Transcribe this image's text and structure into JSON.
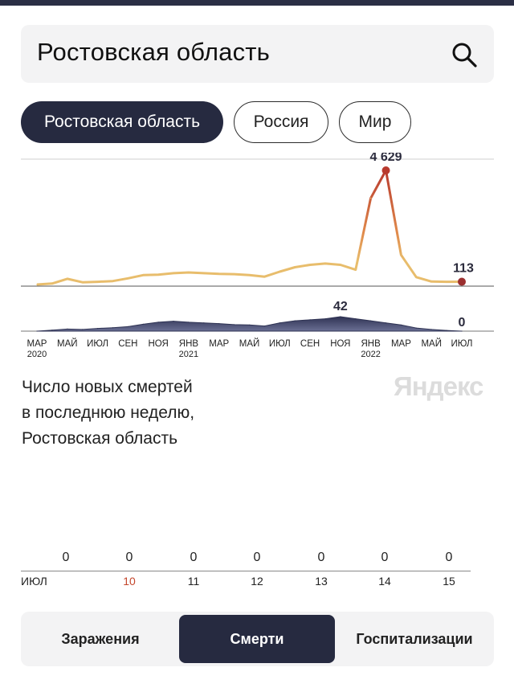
{
  "search": {
    "value": "Ростовская область",
    "icon": "search-icon"
  },
  "region_tabs": [
    {
      "label": "Ростовская область",
      "active": true
    },
    {
      "label": "Россия",
      "active": false
    },
    {
      "label": "Мир",
      "active": false
    }
  ],
  "chart_data": [
    {
      "type": "line",
      "title": "",
      "series": [
        {
          "x": [
            "2020-03",
            "2020-04",
            "2020-05",
            "2020-06",
            "2020-07",
            "2020-08",
            "2020-09",
            "2020-10",
            "2020-11",
            "2020-12",
            "2021-01",
            "2021-02",
            "2021-03",
            "2021-04",
            "2021-05",
            "2021-06",
            "2021-07",
            "2021-08",
            "2021-09",
            "2021-10",
            "2021-11",
            "2021-12",
            "2022-01",
            "2022-02",
            "2022-03",
            "2022-04",
            "2022-05",
            "2022-06",
            "2022-07"
          ],
          "y": [
            0,
            40,
            230,
            90,
            110,
            140,
            250,
            380,
            400,
            460,
            490,
            460,
            430,
            420,
            380,
            320,
            520,
            700,
            800,
            850,
            800,
            600,
            3500,
            4629,
            1200,
            300,
            120,
            110,
            113
          ]
        }
      ],
      "labels": {
        "peak": "4 629",
        "last": "113"
      },
      "colors": {
        "low": "#e8bd6c",
        "high": "#b83a2e"
      }
    },
    {
      "type": "area",
      "title": "",
      "series": [
        {
          "x": [
            "2020-03",
            "2020-04",
            "2020-05",
            "2020-06",
            "2020-07",
            "2020-08",
            "2020-09",
            "2020-10",
            "2020-11",
            "2020-12",
            "2021-01",
            "2021-02",
            "2021-03",
            "2021-04",
            "2021-05",
            "2021-06",
            "2021-07",
            "2021-08",
            "2021-09",
            "2021-10",
            "2021-11",
            "2021-12",
            "2022-01",
            "2022-02",
            "2022-03",
            "2022-04",
            "2022-05",
            "2022-06",
            "2022-07"
          ],
          "y": [
            0,
            3,
            6,
            5,
            8,
            10,
            13,
            20,
            26,
            29,
            26,
            24,
            22,
            19,
            18,
            15,
            24,
            30,
            33,
            36,
            42,
            36,
            30,
            24,
            18,
            9,
            5,
            2,
            0
          ]
        }
      ],
      "labels": {
        "peak": "42",
        "last": "0"
      },
      "colors": {
        "fill": "#3d4163"
      }
    }
  ],
  "x_axis": {
    "ticks": [
      {
        "label": "МАР",
        "year": "2020"
      },
      {
        "label": "МАЙ"
      },
      {
        "label": "ИЮЛ"
      },
      {
        "label": "СЕН"
      },
      {
        "label": "НОЯ"
      },
      {
        "label": "ЯНВ",
        "year": "2021"
      },
      {
        "label": "МАР"
      },
      {
        "label": "МАЙ"
      },
      {
        "label": "ИЮЛ"
      },
      {
        "label": "СЕН"
      },
      {
        "label": "НОЯ"
      },
      {
        "label": "ЯНВ",
        "year": "2022"
      },
      {
        "label": "МАР"
      },
      {
        "label": "МАЙ"
      },
      {
        "label": "ИЮЛ"
      }
    ]
  },
  "description": {
    "lines": [
      "Число новых смертей",
      "в последнюю неделю,",
      "Ростовская область"
    ]
  },
  "brand": "Яндекс",
  "weekly": {
    "month": "ИЮЛ",
    "days": [
      {
        "day": "10",
        "value": "0",
        "highlight": true
      },
      {
        "day": "11",
        "value": "0"
      },
      {
        "day": "12",
        "value": "0"
      },
      {
        "day": "13",
        "value": "0"
      },
      {
        "day": "14",
        "value": "0"
      },
      {
        "day": "15",
        "value": "0"
      }
    ],
    "first_value": "0"
  },
  "bottom_tabs": [
    {
      "label": "Заражения",
      "active": false
    },
    {
      "label": "Смерти",
      "active": true
    },
    {
      "label": "Госпитализации",
      "active": false
    }
  ]
}
